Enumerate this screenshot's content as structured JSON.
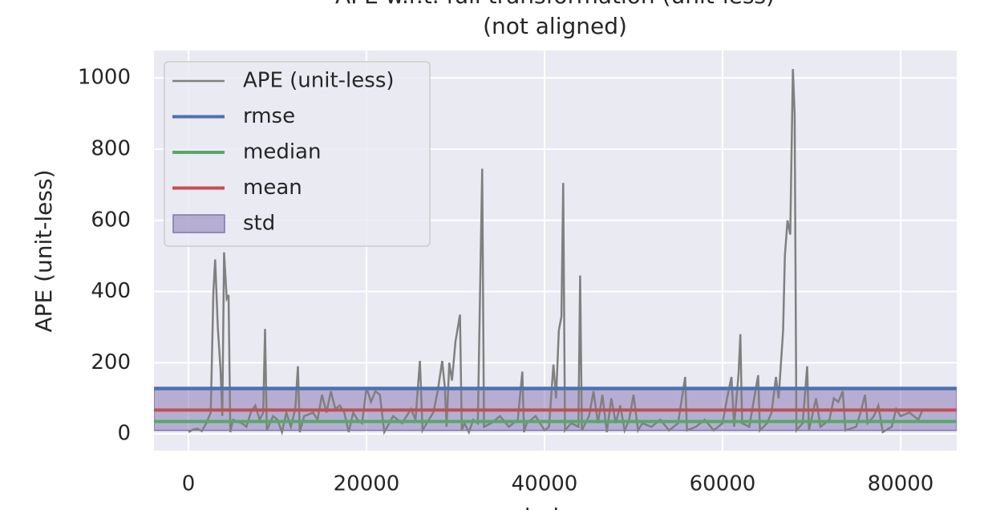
{
  "chart_data": {
    "type": "line",
    "title": "APE w.r.t. full transformation (unit-less)",
    "subtitle": "(not aligned)",
    "xlabel": "index",
    "ylabel": "APE (unit-less)",
    "xlim": [
      -3874,
      86306
    ],
    "ylim": [
      -47,
      1077
    ],
    "xticks": [
      0,
      20000,
      40000,
      60000,
      80000
    ],
    "yticks": [
      0,
      200,
      400,
      600,
      800,
      1000
    ],
    "grid": true,
    "legend": "upper left",
    "x": [
      0,
      500,
      1000,
      1500,
      2000,
      2500,
      2800,
      3000,
      3300,
      3600,
      3800,
      4000,
      4300,
      4500,
      4700,
      5000,
      6000,
      6500,
      7000,
      7500,
      8000,
      8400,
      8600,
      8800,
      9500,
      10000,
      10500,
      11000,
      11500,
      12000,
      12300,
      12500,
      13000,
      14000,
      14500,
      15000,
      15500,
      16000,
      16500,
      17000,
      17500,
      18000,
      18500,
      19000,
      19500,
      20000,
      20500,
      21000,
      21500,
      22000,
      23000,
      24000,
      25000,
      25500,
      26000,
      26300,
      27000,
      27500,
      28000,
      28500,
      28800,
      29000,
      29300,
      29600,
      30000,
      30500,
      30700,
      31000,
      31500,
      32000,
      32500,
      33000,
      33200,
      34000,
      35000,
      36000,
      37000,
      37500,
      37700,
      38000,
      39000,
      40000,
      40500,
      41000,
      41300,
      41600,
      41900,
      42100,
      42300,
      43000,
      43800,
      44000,
      44200,
      45000,
      45500,
      46000,
      46500,
      47000,
      47500,
      48000,
      48500,
      49000,
      49500,
      50000,
      50500,
      51000,
      52000,
      53000,
      54000,
      55000,
      55800,
      56000,
      57000,
      58000,
      59000,
      60000,
      60500,
      61000,
      61300,
      61800,
      62000,
      62200,
      63000,
      64000,
      64200,
      65000,
      65500,
      66000,
      66300,
      66800,
      67000,
      67300,
      67600,
      67900,
      68100,
      68300,
      69000,
      69500,
      69700,
      70500,
      71000,
      72000,
      72500,
      73000,
      73500,
      73800,
      75000,
      75500,
      76000,
      76300,
      77000,
      77500,
      78000,
      79000,
      79500,
      80000,
      81000,
      82000,
      82500
    ],
    "series": [
      {
        "name": "APE (unit-less)",
        "color": "#808080",
        "values": [
          5,
          12,
          15,
          8,
          30,
          60,
          400,
          490,
          300,
          180,
          50,
          510,
          380,
          390,
          5,
          40,
          30,
          20,
          60,
          80,
          40,
          60,
          295,
          10,
          50,
          40,
          5,
          60,
          20,
          70,
          190,
          5,
          50,
          60,
          40,
          110,
          60,
          120,
          70,
          80,
          60,
          5,
          60,
          40,
          30,
          130,
          90,
          120,
          110,
          5,
          50,
          30,
          70,
          40,
          205,
          10,
          40,
          60,
          120,
          205,
          130,
          20,
          200,
          150,
          260,
          335,
          10,
          30,
          5,
          40,
          30,
          745,
          20,
          30,
          50,
          20,
          40,
          175,
          5,
          30,
          50,
          10,
          20,
          195,
          100,
          290,
          330,
          705,
          10,
          30,
          20,
          445,
          10,
          50,
          120,
          30,
          110,
          5,
          100,
          30,
          80,
          10,
          40,
          110,
          10,
          30,
          20,
          40,
          10,
          30,
          160,
          10,
          20,
          40,
          10,
          30,
          100,
          160,
          20,
          170,
          280,
          30,
          20,
          165,
          10,
          30,
          60,
          160,
          100,
          290,
          500,
          600,
          560,
          1025,
          900,
          10,
          30,
          190,
          10,
          100,
          20,
          40,
          100,
          90,
          120,
          10,
          20,
          60,
          110,
          30,
          50,
          80,
          5,
          20,
          70,
          50,
          60,
          40,
          70
        ]
      }
    ],
    "stats": [
      {
        "name": "rmse",
        "color": "#4c72b0",
        "value": 128
      },
      {
        "name": "median",
        "color": "#55a868",
        "value": 35
      },
      {
        "name": "mean",
        "color": "#c44e52",
        "value": 67
      }
    ],
    "std": {
      "name": "std",
      "color": "#8172b2",
      "value": 57
    }
  }
}
